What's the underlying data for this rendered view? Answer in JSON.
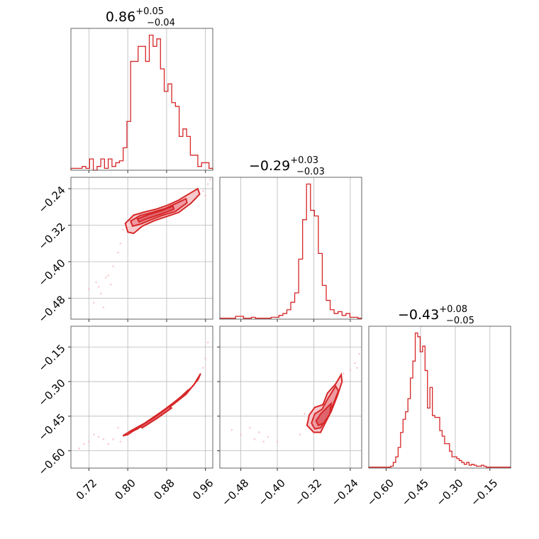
{
  "chart_data": {
    "type": "corner",
    "grid": true,
    "parameters": [
      {
        "title_value": "0.86",
        "err_plus": "+0.05",
        "err_minus": "−0.04",
        "range": [
          0.683,
          0.975
        ],
        "ticks": [
          0.72,
          0.8,
          0.88,
          0.96
        ],
        "tick_labels": [
          "0.72",
          "0.80",
          "0.88",
          "0.96"
        ]
      },
      {
        "title_value": "−0.29",
        "err_plus": "+0.03",
        "err_minus": "−0.03",
        "range": [
          -0.526,
          -0.215
        ],
        "ticks": [
          -0.48,
          -0.4,
          -0.32,
          -0.24
        ],
        "tick_labels": [
          "−0.48",
          "−0.40",
          "−0.32",
          "−0.24"
        ]
      },
      {
        "title_value": "−0.43",
        "err_plus": "+0.08",
        "err_minus": "−0.05",
        "range": [
          -0.675,
          -0.06
        ],
        "ticks": [
          -0.6,
          -0.45,
          -0.3,
          -0.15
        ],
        "tick_labels": [
          "−0.60",
          "−0.45",
          "−0.30",
          "−0.15"
        ]
      }
    ],
    "histograms": [
      {
        "param": 0,
        "edges_start": 0.683,
        "edges_end": 0.975,
        "counts": [
          0.5,
          0.5,
          0.5,
          1,
          0.5,
          3,
          0,
          1,
          3,
          0.5,
          3,
          1,
          2,
          2.5,
          6,
          13,
          29,
          29,
          33,
          33,
          29,
          36,
          33,
          35,
          27,
          21,
          23,
          18,
          17,
          9,
          11,
          9,
          4,
          4,
          1,
          2,
          2,
          0.5
        ]
      },
      {
        "param": 1,
        "edges_start": -0.526,
        "edges_end": -0.215,
        "counts": [
          0.5,
          0.5,
          0.5,
          0.5,
          1.5,
          1.5,
          0.5,
          0.5,
          1,
          0.5,
          0.5,
          0.5,
          0.5,
          1,
          1,
          2,
          3,
          5,
          9,
          14,
          32,
          53,
          72,
          58,
          55,
          35,
          18,
          10,
          5,
          3,
          4,
          2,
          3,
          1,
          1,
          0.5
        ]
      },
      {
        "param": 2,
        "edges_start": -0.675,
        "edges_end": -0.06,
        "counts": [
          0.5,
          0.5,
          0.5,
          0.5,
          0.5,
          0.5,
          0.5,
          0.5,
          0.5,
          1,
          3,
          6,
          11,
          19,
          26,
          30,
          37,
          48,
          57,
          72,
          70,
          62,
          65,
          52,
          32,
          43,
          28,
          27,
          27,
          20,
          17,
          13,
          13,
          9,
          6,
          6,
          5,
          4,
          3,
          2,
          3,
          1.5,
          2,
          1.5,
          1,
          1,
          1.5,
          1,
          0.5,
          0.5,
          0.5,
          0.5,
          0.5,
          0.5,
          0.5,
          0.5,
          0.5,
          0.5
        ]
      }
    ],
    "pairs": [
      {
        "x_param": 0,
        "y_param": 1,
        "contours": [
          [
            [
              0.795,
              -0.316
            ],
            [
              0.812,
              -0.298
            ],
            [
              0.835,
              -0.291
            ],
            [
              0.858,
              -0.285
            ],
            [
              0.88,
              -0.277
            ],
            [
              0.905,
              -0.265
            ],
            [
              0.925,
              -0.252
            ],
            [
              0.944,
              -0.24
            ],
            [
              0.948,
              -0.252
            ],
            [
              0.93,
              -0.272
            ],
            [
              0.905,
              -0.292
            ],
            [
              0.88,
              -0.301
            ],
            [
              0.855,
              -0.31
            ],
            [
              0.83,
              -0.322
            ],
            [
              0.812,
              -0.338
            ],
            [
              0.8,
              -0.335
            ],
            [
              0.798,
              -0.327
            ]
          ],
          [
            [
              0.806,
              -0.311
            ],
            [
              0.825,
              -0.299
            ],
            [
              0.85,
              -0.292
            ],
            [
              0.875,
              -0.284
            ],
            [
              0.9,
              -0.272
            ],
            [
              0.92,
              -0.262
            ],
            [
              0.922,
              -0.271
            ],
            [
              0.898,
              -0.29
            ],
            [
              0.873,
              -0.298
            ],
            [
              0.848,
              -0.308
            ],
            [
              0.825,
              -0.318
            ],
            [
              0.81,
              -0.322
            ]
          ],
          [
            [
              0.82,
              -0.306
            ],
            [
              0.845,
              -0.296
            ],
            [
              0.87,
              -0.288
            ],
            [
              0.893,
              -0.278
            ],
            [
              0.895,
              -0.285
            ],
            [
              0.868,
              -0.296
            ],
            [
              0.842,
              -0.305
            ],
            [
              0.823,
              -0.313
            ]
          ]
        ],
        "scatter": [
          [
            0.72,
            -0.46
          ],
          [
            0.73,
            -0.49
          ],
          [
            0.745,
            -0.47
          ],
          [
            0.75,
            -0.5
          ],
          [
            0.76,
            -0.43
          ],
          [
            0.765,
            -0.45
          ],
          [
            0.77,
            -0.41
          ],
          [
            0.78,
            -0.38
          ],
          [
            0.785,
            -0.36
          ],
          [
            0.79,
            -0.33
          ],
          [
            0.8,
            -0.31
          ],
          [
            0.94,
            -0.26
          ],
          [
            0.955,
            -0.245
          ],
          [
            0.965,
            -0.23
          ],
          [
            0.97,
            -0.22
          ],
          [
            0.93,
            -0.27
          ],
          [
            0.96,
            -0.255
          ],
          [
            0.74,
            -0.455
          ],
          [
            0.755,
            -0.435
          ],
          [
            0.735,
            -0.445
          ]
        ]
      },
      {
        "x_param": 0,
        "y_param": 2,
        "contours": [
          [
            [
              0.79,
              -0.535
            ],
            [
              0.805,
              -0.515
            ],
            [
              0.835,
              -0.48
            ],
            [
              0.87,
              -0.43
            ],
            [
              0.905,
              -0.375
            ],
            [
              0.935,
              -0.318
            ],
            [
              0.95,
              -0.265
            ],
            [
              0.945,
              -0.29
            ],
            [
              0.92,
              -0.355
            ],
            [
              0.89,
              -0.405
            ],
            [
              0.855,
              -0.455
            ],
            [
              0.825,
              -0.495
            ],
            [
              0.8,
              -0.53
            ]
          ],
          [
            [
              0.805,
              -0.52
            ],
            [
              0.84,
              -0.475
            ],
            [
              0.875,
              -0.425
            ],
            [
              0.91,
              -0.365
            ],
            [
              0.925,
              -0.335
            ],
            [
              0.9,
              -0.385
            ],
            [
              0.86,
              -0.445
            ],
            [
              0.82,
              -0.505
            ]
          ],
          [
            [
              0.825,
              -0.495
            ],
            [
              0.855,
              -0.455
            ],
            [
              0.885,
              -0.408
            ],
            [
              0.89,
              -0.415
            ],
            [
              0.86,
              -0.46
            ],
            [
              0.83,
              -0.5
            ]
          ]
        ],
        "scatter": [
          [
            0.7,
            -0.59
          ],
          [
            0.71,
            -0.57
          ],
          [
            0.72,
            -0.56
          ],
          [
            0.74,
            -0.54
          ],
          [
            0.75,
            -0.55
          ],
          [
            0.77,
            -0.55
          ],
          [
            0.78,
            -0.5
          ],
          [
            0.785,
            -0.56
          ],
          [
            0.965,
            -0.13
          ],
          [
            0.96,
            -0.2
          ],
          [
            0.955,
            -0.24
          ],
          [
            0.73,
            -0.53
          ],
          [
            0.76,
            -0.57
          ]
        ]
      },
      {
        "x_param": 1,
        "y_param": 2,
        "contours": [
          [
            [
              -0.335,
              -0.49
            ],
            [
              -0.33,
              -0.445
            ],
            [
              -0.318,
              -0.412
            ],
            [
              -0.3,
              -0.4
            ],
            [
              -0.29,
              -0.35
            ],
            [
              -0.272,
              -0.31
            ],
            [
              -0.26,
              -0.27
            ],
            [
              -0.258,
              -0.3
            ],
            [
              -0.268,
              -0.36
            ],
            [
              -0.282,
              -0.43
            ],
            [
              -0.295,
              -0.48
            ],
            [
              -0.305,
              -0.52
            ],
            [
              -0.32,
              -0.52
            ]
          ],
          [
            [
              -0.325,
              -0.48
            ],
            [
              -0.318,
              -0.44
            ],
            [
              -0.302,
              -0.42
            ],
            [
              -0.288,
              -0.37
            ],
            [
              -0.272,
              -0.32
            ],
            [
              -0.266,
              -0.34
            ],
            [
              -0.278,
              -0.4
            ],
            [
              -0.292,
              -0.46
            ],
            [
              -0.305,
              -0.5
            ],
            [
              -0.318,
              -0.505
            ]
          ],
          [
            [
              -0.315,
              -0.47
            ],
            [
              -0.305,
              -0.44
            ],
            [
              -0.29,
              -0.41
            ],
            [
              -0.282,
              -0.395
            ],
            [
              -0.285,
              -0.44
            ],
            [
              -0.298,
              -0.48
            ],
            [
              -0.31,
              -0.49
            ]
          ]
        ],
        "scatter": [
          [
            -0.5,
            -0.51
          ],
          [
            -0.48,
            -0.53
          ],
          [
            -0.46,
            -0.5
          ],
          [
            -0.45,
            -0.55
          ],
          [
            -0.43,
            -0.56
          ],
          [
            -0.42,
            -0.54
          ],
          [
            -0.4,
            -0.56
          ],
          [
            -0.44,
            -0.52
          ],
          [
            -0.35,
            -0.53
          ],
          [
            -0.34,
            -0.44
          ],
          [
            -0.23,
            -0.22
          ],
          [
            -0.225,
            -0.24
          ],
          [
            -0.22,
            -0.18
          ],
          [
            -0.24,
            -0.25
          ],
          [
            -0.255,
            -0.265
          ]
        ]
      }
    ]
  },
  "colors": {
    "line": "#d62728",
    "fill_outer": "#f6c9cc",
    "fill_mid": "#ee9aa0",
    "fill_inner": "#e0646c",
    "grid": "#b8b8b8"
  }
}
